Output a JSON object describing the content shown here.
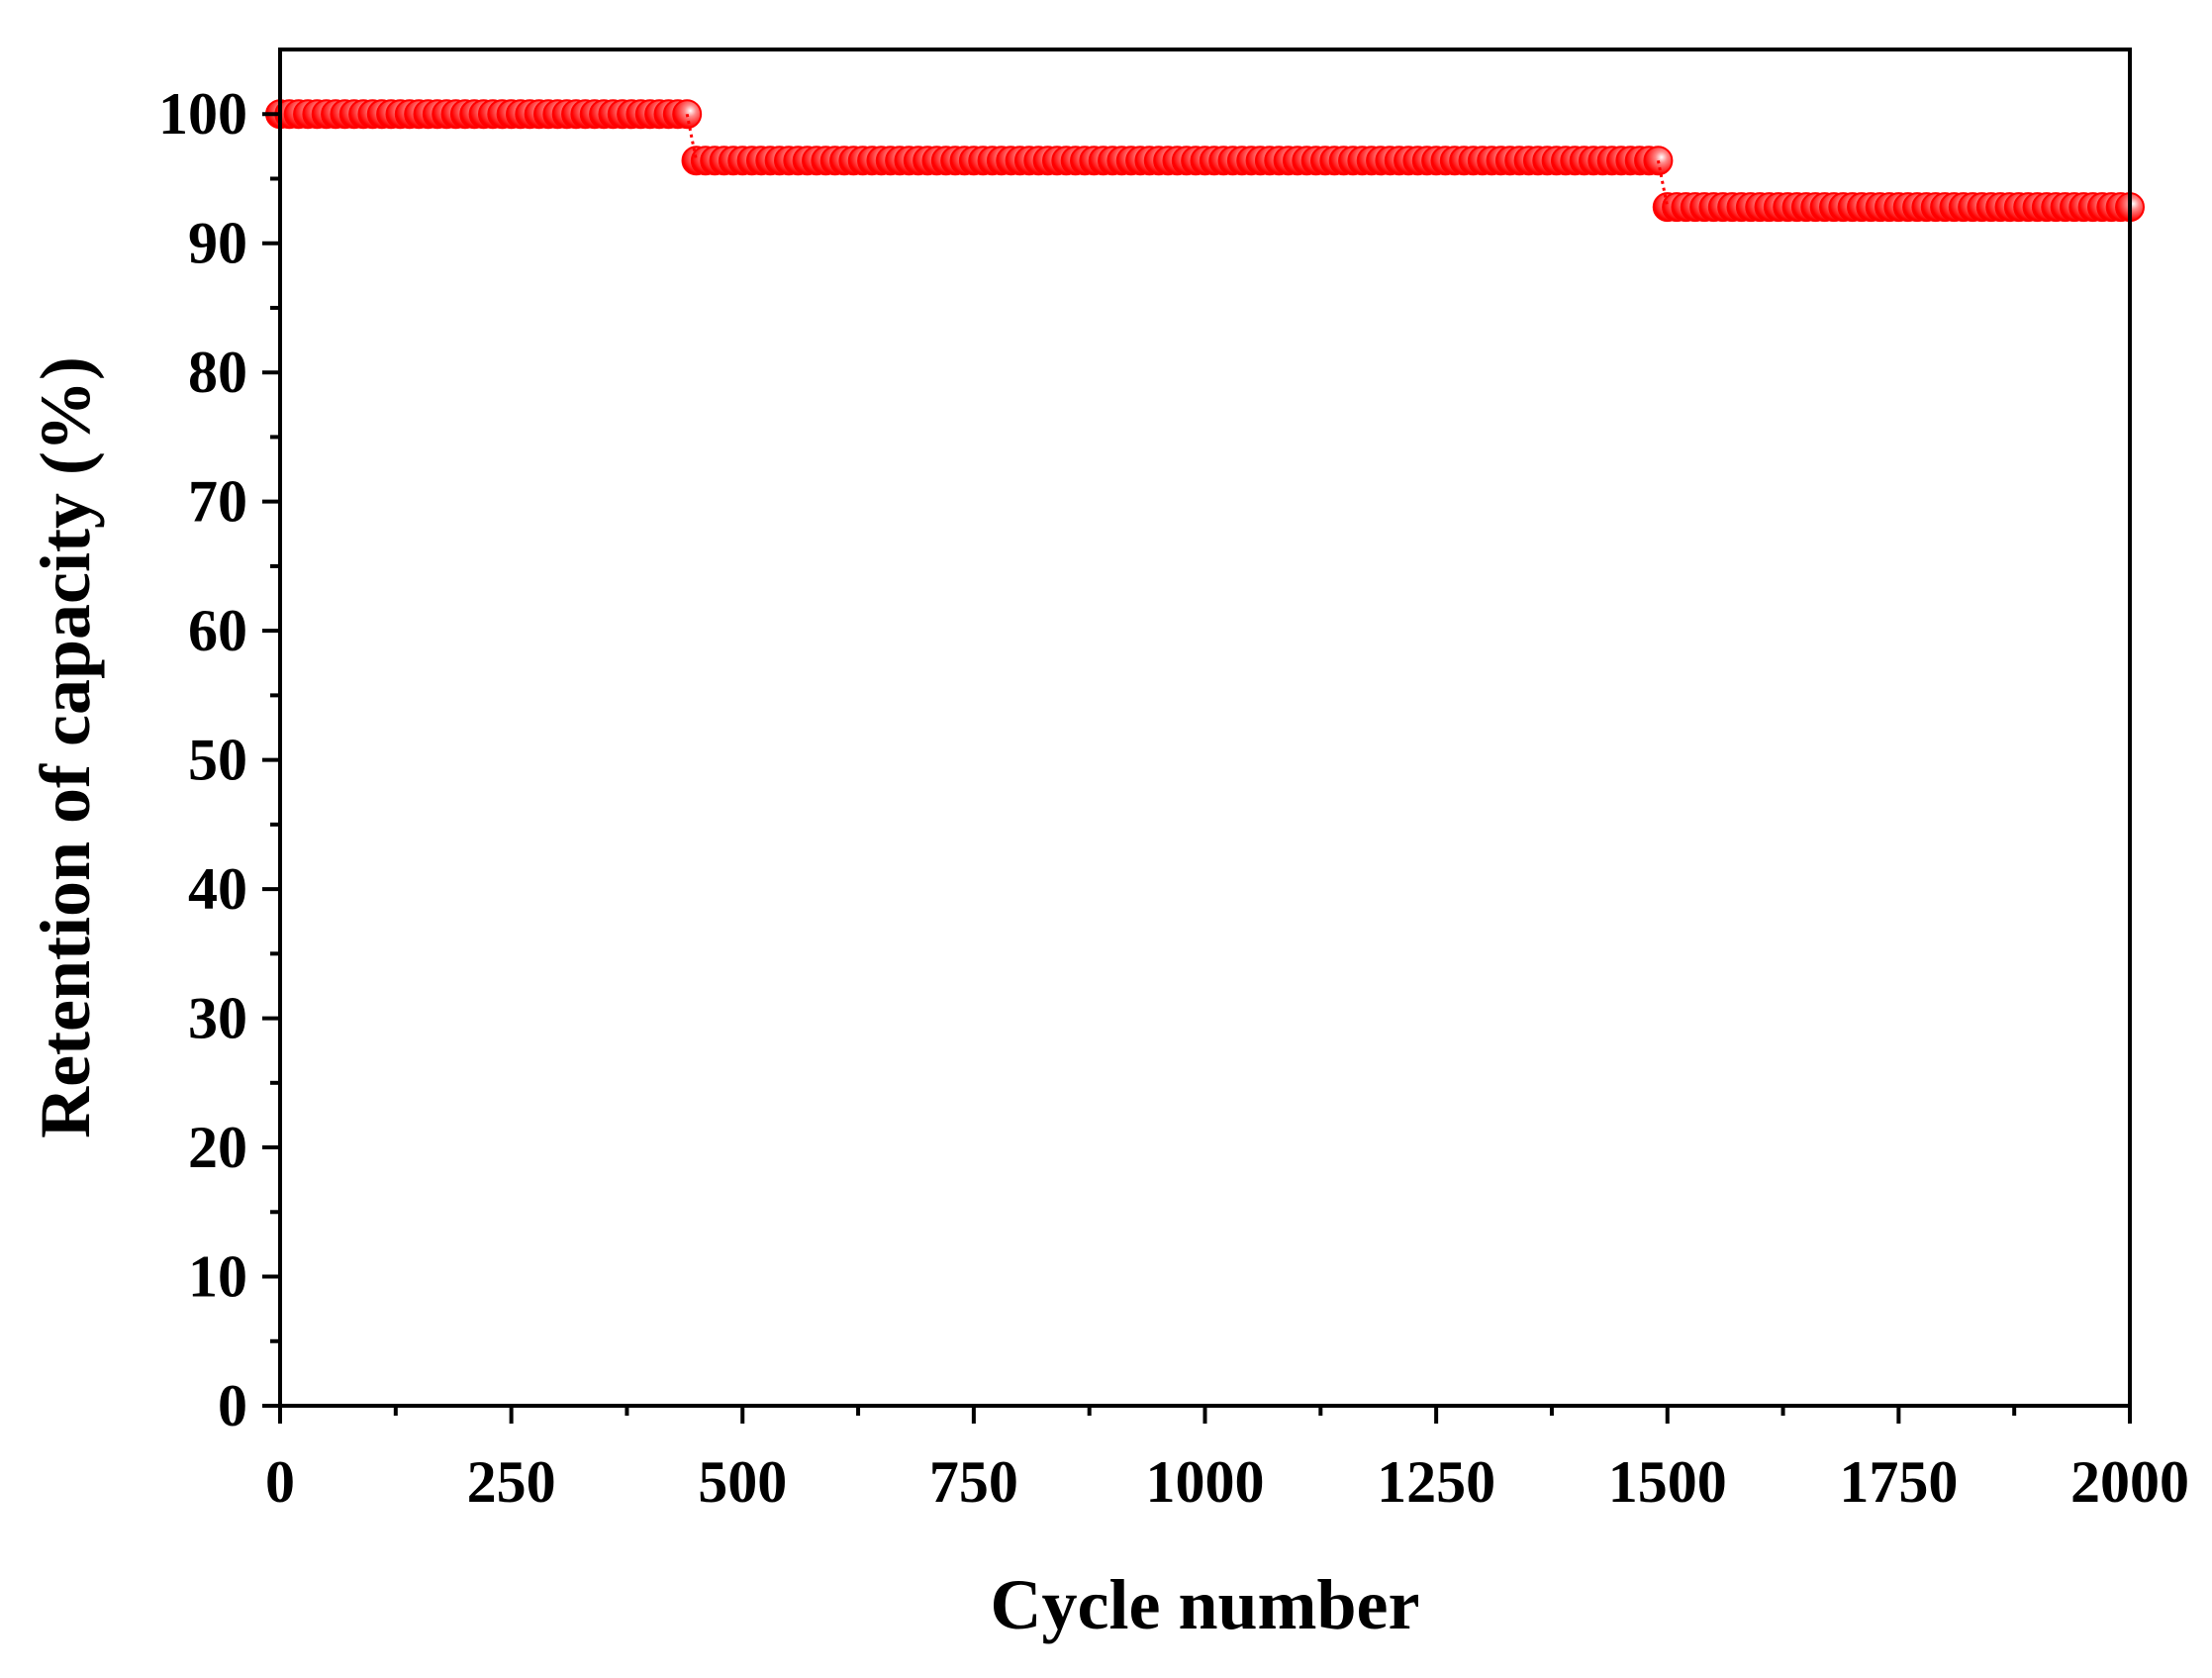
{
  "chart_data": {
    "type": "scatter",
    "xlabel": "Cycle number",
    "ylabel": "Retention of capacity (%)",
    "xlim": [
      0,
      2000
    ],
    "ylim": [
      0,
      105
    ],
    "x_ticks": [
      0,
      250,
      500,
      750,
      1000,
      1250,
      1500,
      1750,
      2000
    ],
    "x_tick_labels": [
      "0",
      "250",
      "500",
      "750",
      "1000",
      "1250",
      "1500",
      "1750",
      "2000"
    ],
    "y_ticks": [
      0,
      10,
      20,
      30,
      40,
      50,
      60,
      70,
      80,
      90,
      100
    ],
    "y_tick_labels": [
      "0",
      "10",
      "20",
      "30",
      "40",
      "50",
      "60",
      "70",
      "80",
      "90",
      "100"
    ],
    "x_minor_step": 125,
    "y_minor_step": 5,
    "grid": false,
    "legend": "none",
    "marker": "circle",
    "series": [
      {
        "color": "#ff0000",
        "segments": [
          {
            "x_start": 0,
            "x_end": 440,
            "step": 10,
            "value": 100.0
          },
          {
            "x_start": 450,
            "x_end": 1490,
            "step": 10,
            "value": 96.4
          },
          {
            "x_start": 1500,
            "x_end": 2000,
            "step": 10,
            "value": 92.8
          }
        ]
      }
    ]
  }
}
